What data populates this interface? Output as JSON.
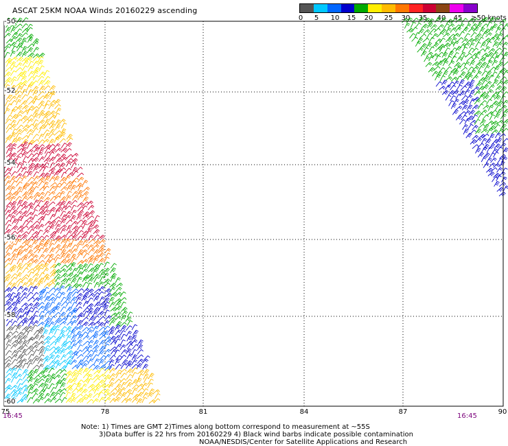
{
  "title": "ASCAT 25KM NOAA Winds 20160229 ascending",
  "colorbar": {
    "colors": [
      "#555555",
      "#00c8ff",
      "#0066ff",
      "#0000cc",
      "#00aa00",
      "#ffee00",
      "#ffbb00",
      "#ff7700",
      "#ff2222",
      "#cc0033",
      "#8b4513",
      "#ee00ee",
      "#8800cc"
    ],
    "labels": [
      "0",
      "5",
      "10",
      "15",
      "20",
      "25",
      "30",
      "35",
      "40",
      "45",
      "≥50 knots"
    ]
  },
  "lat_labels": [
    "-50",
    "-52",
    "-54",
    "-56",
    "-58",
    "-60"
  ],
  "lon_labels": [
    "75",
    "78",
    "81",
    "84",
    "87",
    "90"
  ],
  "time_labels": {
    "left": "16:45",
    "right": "16:45"
  },
  "notes": {
    "line1": "Note: 1) Times are GMT 2)Times along bottom correspond to measurement at ~55S",
    "line2": "3)Data buffer is 22 hrs from 20160229 4) Black wind barbs indicate possible contamination",
    "line3": "NOAA/NESDIS/Center for Satellite Applications and Research"
  }
}
